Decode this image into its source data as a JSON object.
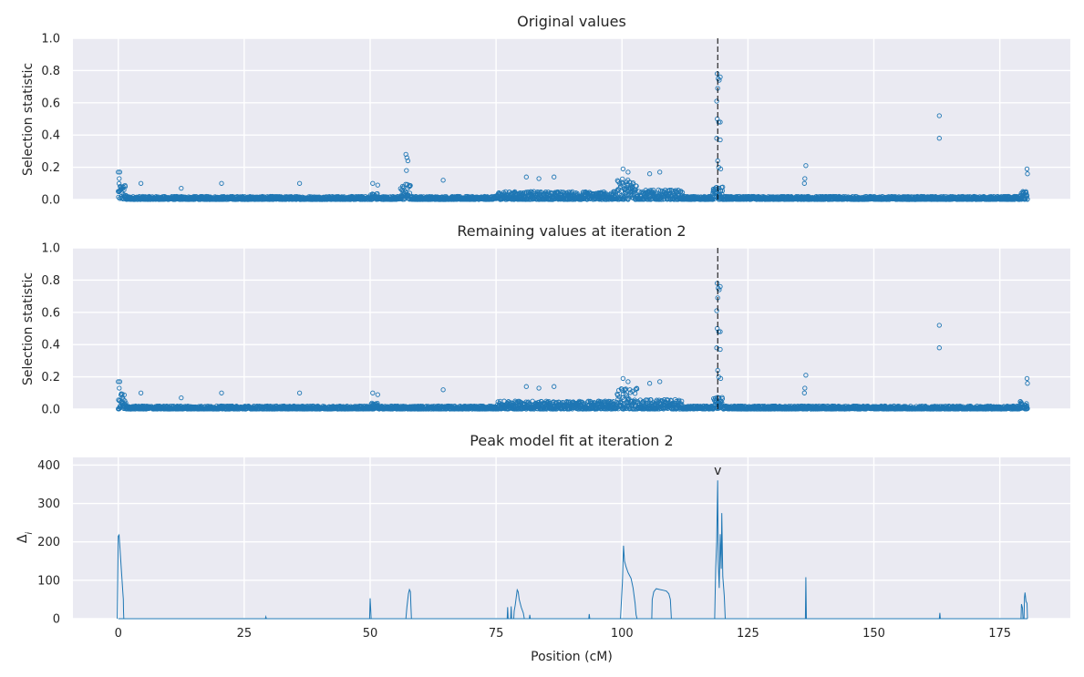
{
  "chart_data": [
    {
      "type": "scatter",
      "title": "Original values",
      "xlabel": "",
      "ylabel": "Selection statistic",
      "xlim": [
        -9,
        189
      ],
      "ylim": [
        0,
        1.0
      ],
      "yticks": [
        "0.0",
        "0.2",
        "0.4",
        "0.6",
        "0.8",
        "1.0"
      ],
      "grid": true,
      "marker_color": "#1f77b4",
      "peak_line_x": 119,
      "background_points": {
        "x_range": [
          0,
          180.5
        ],
        "base_max": 0.02
      },
      "regions": [
        {
          "x": [
            0,
            1.5
          ],
          "height": 0.1
        },
        {
          "x": [
            50,
            51.5
          ],
          "height": 0.04
        },
        {
          "x": [
            56,
            58
          ],
          "height": 0.1
        },
        {
          "x": [
            75,
            99
          ],
          "height": 0.05
        },
        {
          "x": [
            99,
            103
          ],
          "height": 0.13
        },
        {
          "x": [
            103,
            112
          ],
          "height": 0.06
        },
        {
          "x": [
            118,
            120
          ],
          "height": 0.08
        },
        {
          "x": [
            179,
            180.5
          ],
          "height": 0.05
        }
      ],
      "outliers": [
        {
          "x": 0,
          "y": 0.17
        },
        {
          "x": 0.3,
          "y": 0.17
        },
        {
          "x": 0.2,
          "y": 0.13
        },
        {
          "x": 4.5,
          "y": 0.1
        },
        {
          "x": 12.5,
          "y": 0.07
        },
        {
          "x": 20.5,
          "y": 0.1
        },
        {
          "x": 36,
          "y": 0.1
        },
        {
          "x": 50.5,
          "y": 0.1
        },
        {
          "x": 51.5,
          "y": 0.09
        },
        {
          "x": 57.1,
          "y": 0.28
        },
        {
          "x": 57.3,
          "y": 0.26
        },
        {
          "x": 57.5,
          "y": 0.24
        },
        {
          "x": 57.2,
          "y": 0.18
        },
        {
          "x": 64.5,
          "y": 0.12
        },
        {
          "x": 81,
          "y": 0.14
        },
        {
          "x": 83.5,
          "y": 0.13
        },
        {
          "x": 86.5,
          "y": 0.14
        },
        {
          "x": 100.2,
          "y": 0.19
        },
        {
          "x": 101.2,
          "y": 0.17
        },
        {
          "x": 105.5,
          "y": 0.16
        },
        {
          "x": 107.5,
          "y": 0.17
        },
        {
          "x": 118.9,
          "y": 0.78
        },
        {
          "x": 119.1,
          "y": 0.75
        },
        {
          "x": 119.5,
          "y": 0.76
        },
        {
          "x": 119.3,
          "y": 0.74
        },
        {
          "x": 119.0,
          "y": 0.69
        },
        {
          "x": 118.8,
          "y": 0.61
        },
        {
          "x": 118.9,
          "y": 0.5
        },
        {
          "x": 119.2,
          "y": 0.48
        },
        {
          "x": 119.5,
          "y": 0.48
        },
        {
          "x": 118.8,
          "y": 0.38
        },
        {
          "x": 119.5,
          "y": 0.37
        },
        {
          "x": 119.0,
          "y": 0.24
        },
        {
          "x": 119.2,
          "y": 0.2
        },
        {
          "x": 119.6,
          "y": 0.19
        },
        {
          "x": 136.5,
          "y": 0.21
        },
        {
          "x": 136.3,
          "y": 0.13
        },
        {
          "x": 136.2,
          "y": 0.1
        },
        {
          "x": 163,
          "y": 0.52
        },
        {
          "x": 163,
          "y": 0.38
        },
        {
          "x": 180.4,
          "y": 0.19
        },
        {
          "x": 180.5,
          "y": 0.16
        }
      ]
    },
    {
      "type": "scatter",
      "title": "Remaining values at iteration 2",
      "xlabel": "",
      "ylabel": "Selection statistic",
      "xlim": [
        -9,
        189
      ],
      "ylim": [
        0,
        1.0
      ],
      "yticks": [
        "0.0",
        "0.2",
        "0.4",
        "0.6",
        "0.8",
        "1.0"
      ],
      "grid": true,
      "marker_color": "#1f77b4",
      "peak_line_x": 119,
      "background_points": {
        "x_range": [
          0,
          180.5
        ],
        "base_max": 0.02
      },
      "regions": [
        {
          "x": [
            0,
            1.5
          ],
          "height": 0.1
        },
        {
          "x": [
            50,
            51.5
          ],
          "height": 0.04
        },
        {
          "x": [
            75,
            99
          ],
          "height": 0.05
        },
        {
          "x": [
            99,
            103
          ],
          "height": 0.13
        },
        {
          "x": [
            103,
            112
          ],
          "height": 0.06
        },
        {
          "x": [
            118,
            120
          ],
          "height": 0.08
        },
        {
          "x": [
            179,
            180.5
          ],
          "height": 0.05
        }
      ],
      "outliers": [
        {
          "x": 0,
          "y": 0.17
        },
        {
          "x": 0.3,
          "y": 0.17
        },
        {
          "x": 0.2,
          "y": 0.13
        },
        {
          "x": 4.5,
          "y": 0.1
        },
        {
          "x": 12.5,
          "y": 0.07
        },
        {
          "x": 20.5,
          "y": 0.1
        },
        {
          "x": 36,
          "y": 0.1
        },
        {
          "x": 50.5,
          "y": 0.1
        },
        {
          "x": 51.5,
          "y": 0.09
        },
        {
          "x": 64.5,
          "y": 0.12
        },
        {
          "x": 81,
          "y": 0.14
        },
        {
          "x": 83.5,
          "y": 0.13
        },
        {
          "x": 86.5,
          "y": 0.14
        },
        {
          "x": 100.2,
          "y": 0.19
        },
        {
          "x": 101.2,
          "y": 0.17
        },
        {
          "x": 105.5,
          "y": 0.16
        },
        {
          "x": 107.5,
          "y": 0.17
        },
        {
          "x": 118.9,
          "y": 0.78
        },
        {
          "x": 119.1,
          "y": 0.75
        },
        {
          "x": 119.5,
          "y": 0.76
        },
        {
          "x": 119.3,
          "y": 0.74
        },
        {
          "x": 119.0,
          "y": 0.69
        },
        {
          "x": 118.8,
          "y": 0.61
        },
        {
          "x": 118.9,
          "y": 0.5
        },
        {
          "x": 119.2,
          "y": 0.48
        },
        {
          "x": 119.5,
          "y": 0.48
        },
        {
          "x": 118.8,
          "y": 0.38
        },
        {
          "x": 119.5,
          "y": 0.37
        },
        {
          "x": 119.0,
          "y": 0.24
        },
        {
          "x": 119.2,
          "y": 0.2
        },
        {
          "x": 119.6,
          "y": 0.19
        },
        {
          "x": 136.5,
          "y": 0.21
        },
        {
          "x": 136.3,
          "y": 0.13
        },
        {
          "x": 136.2,
          "y": 0.1
        },
        {
          "x": 163,
          "y": 0.52
        },
        {
          "x": 163,
          "y": 0.38
        },
        {
          "x": 180.4,
          "y": 0.19
        },
        {
          "x": 180.5,
          "y": 0.16
        }
      ]
    },
    {
      "type": "line",
      "title": "Peak model fit at iteration 2",
      "xlabel": "Position (cM)",
      "ylabel": "Δ_i",
      "xlim": [
        -9,
        189
      ],
      "ylim": [
        0,
        420
      ],
      "yticks": [
        "0",
        "100",
        "200",
        "300",
        "400"
      ],
      "xticks": [
        "0",
        "25",
        "50",
        "75",
        "100",
        "125",
        "150",
        "175"
      ],
      "xtick_values": [
        0,
        25,
        50,
        75,
        100,
        125,
        150,
        175
      ],
      "grid": true,
      "line_color": "#1f77b4",
      "marker_label": "v",
      "marker_position": {
        "x": 119,
        "y": 375
      },
      "series": [
        {
          "values": [
            [
              -0.2,
              0
            ],
            [
              0,
              215
            ],
            [
              0.15,
              218
            ],
            [
              0.3,
              190
            ],
            [
              0.5,
              150
            ],
            [
              0.7,
              110
            ],
            [
              0.9,
              70
            ],
            [
              1.0,
              50
            ],
            [
              1.05,
              20
            ],
            [
              1.1,
              0
            ]
          ]
        },
        {
          "values": [
            [
              29.2,
              0
            ],
            [
              29.3,
              5
            ],
            [
              29.4,
              0
            ]
          ]
        },
        {
          "values": [
            [
              49.9,
              0
            ],
            [
              50,
              53
            ],
            [
              50.1,
              30
            ],
            [
              50.2,
              0
            ]
          ]
        },
        {
          "values": [
            [
              57.1,
              0
            ],
            [
              57.3,
              30
            ],
            [
              57.6,
              65
            ],
            [
              57.8,
              76
            ],
            [
              58.0,
              70
            ],
            [
              58.1,
              35
            ],
            [
              58.2,
              0
            ]
          ]
        },
        {
          "values": [
            [
              77.2,
              0
            ],
            [
              77.3,
              30
            ],
            [
              77.4,
              0
            ],
            [
              77.9,
              0
            ],
            [
              78.0,
              32
            ],
            [
              78.1,
              0
            ],
            [
              78.5,
              0
            ],
            [
              78.6,
              20
            ],
            [
              78.8,
              35
            ],
            [
              79.0,
              55
            ],
            [
              79.2,
              75
            ],
            [
              79.4,
              70
            ],
            [
              79.6,
              50
            ],
            [
              80.0,
              30
            ],
            [
              80.4,
              15
            ],
            [
              80.6,
              0
            ],
            [
              81.6,
              0
            ],
            [
              81.7,
              10
            ],
            [
              81.8,
              0
            ]
          ]
        },
        {
          "values": [
            [
              93.4,
              0
            ],
            [
              93.5,
              12
            ],
            [
              93.6,
              0
            ]
          ]
        },
        {
          "values": [
            [
              99.7,
              0
            ],
            [
              100.1,
              100
            ],
            [
              100.3,
              190
            ],
            [
              100.5,
              150
            ],
            [
              100.8,
              135
            ],
            [
              101.2,
              120
            ],
            [
              101.8,
              105
            ],
            [
              102.2,
              80
            ],
            [
              102.6,
              40
            ],
            [
              102.8,
              10
            ],
            [
              103.0,
              0
            ]
          ]
        },
        {
          "values": [
            [
              105.9,
              0
            ],
            [
              106.0,
              50
            ],
            [
              106.3,
              70
            ],
            [
              106.8,
              78
            ],
            [
              107.5,
              76
            ],
            [
              108.2,
              74
            ],
            [
              108.8,
              72
            ],
            [
              109.3,
              65
            ],
            [
              109.6,
              50
            ],
            [
              109.8,
              0
            ]
          ]
        },
        {
          "values": [
            [
              118.4,
              0
            ],
            [
              118.6,
              130
            ],
            [
              118.8,
              200
            ],
            [
              119.0,
              360
            ],
            [
              119.1,
              150
            ],
            [
              119.3,
              80
            ],
            [
              119.5,
              220
            ],
            [
              119.7,
              130
            ],
            [
              119.8,
              275
            ],
            [
              120.0,
              110
            ],
            [
              120.3,
              60
            ],
            [
              120.5,
              0
            ]
          ]
        },
        {
          "values": [
            [
              136.4,
              0
            ],
            [
              136.5,
              108
            ],
            [
              136.6,
              0
            ]
          ]
        },
        {
          "values": [
            [
              163.0,
              0
            ],
            [
              163.1,
              15
            ],
            [
              163.2,
              0
            ]
          ]
        },
        {
          "values": [
            [
              179.2,
              0
            ],
            [
              179.3,
              38
            ],
            [
              179.5,
              28
            ],
            [
              179.6,
              0
            ],
            [
              179.8,
              0
            ],
            [
              179.9,
              55
            ],
            [
              180.0,
              68
            ],
            [
              180.2,
              45
            ],
            [
              180.4,
              40
            ],
            [
              180.5,
              0
            ]
          ]
        }
      ]
    }
  ]
}
